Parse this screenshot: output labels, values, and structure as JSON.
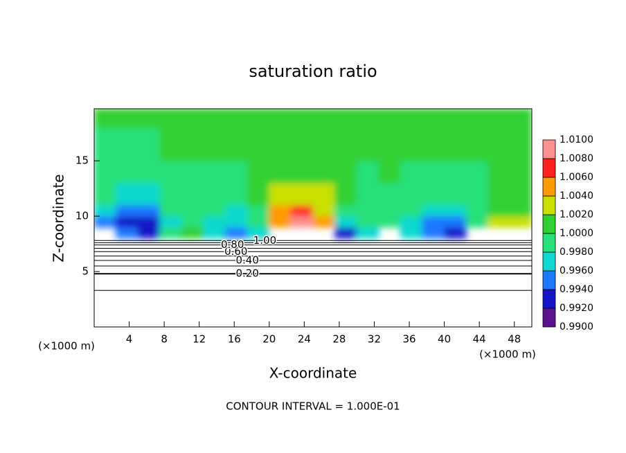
{
  "chart_data": {
    "type": "contour",
    "title": "saturation ratio",
    "x_label": "X-coordinate",
    "y_label": "Z-coordinate",
    "x_unit": "(×1000 m)",
    "y_unit": "(×1000 m)",
    "footer": "CONTOUR INTERVAL = 1.000E-01",
    "xlim": [
      0,
      50
    ],
    "ylim": [
      0,
      19.7
    ],
    "xticks": [
      4,
      8,
      12,
      16,
      20,
      24,
      28,
      32,
      36,
      40,
      44,
      48
    ],
    "yticks": [
      5,
      10,
      15
    ],
    "colorbar": {
      "ticks": [
        {
          "value": 0.99,
          "label": "0.9900"
        },
        {
          "value": 0.992,
          "label": "0.9920"
        },
        {
          "value": 0.994,
          "label": "0.9940"
        },
        {
          "value": 0.996,
          "label": "0.9960"
        },
        {
          "value": 0.998,
          "label": "0.9980"
        },
        {
          "value": 1.0,
          "label": "1.0000"
        },
        {
          "value": 1.002,
          "label": "1.0020"
        },
        {
          "value": 1.004,
          "label": "1.0040"
        },
        {
          "value": 1.006,
          "label": "1.0060"
        },
        {
          "value": 1.008,
          "label": "1.0080"
        },
        {
          "value": 1.01,
          "label": "1.0100"
        }
      ],
      "colors": [
        "#5a1490",
        "#1414c8",
        "#1e78ff",
        "#10d8d0",
        "#28e07a",
        "#30d030",
        "#c8e000",
        "#ff9a00",
        "#ff2020",
        "#ff9090"
      ]
    },
    "field": {
      "xbins": [
        0,
        2.5,
        5,
        7.5,
        10,
        12.5,
        15,
        17.5,
        20,
        22.5,
        25,
        27.5,
        30,
        32.5,
        35,
        37.5,
        40,
        42.5,
        45,
        47.5,
        50
      ],
      "zbins": [
        8,
        9,
        10,
        11,
        13,
        15,
        18,
        19.7
      ],
      "values": [
        [
          null,
          0.994,
          0.992,
          0.998,
          1.001,
          0.997,
          0.994,
          0.997,
          null,
          null,
          null,
          0.993,
          0.996,
          null,
          0.996,
          0.994,
          0.993,
          null,
          null,
          null
        ],
        [
          0.995,
          0.993,
          0.992,
          0.997,
          0.999,
          0.997,
          0.996,
          0.999,
          1.005,
          1.008,
          1.004,
          0.997,
          0.998,
          0.999,
          0.997,
          0.995,
          0.994,
          0.999,
          1.002,
          1.003
        ],
        [
          0.997,
          0.995,
          0.995,
          0.998,
          0.999,
          0.998,
          0.997,
          0.999,
          1.004,
          1.006,
          1.003,
          0.999,
          0.999,
          0.999,
          0.998,
          0.997,
          0.996,
          0.999,
          1.001,
          1.001
        ],
        [
          0.998,
          0.997,
          0.997,
          0.998,
          0.999,
          0.999,
          0.998,
          1.0,
          1.002,
          1.003,
          1.002,
          1.0,
          0.999,
          0.999,
          0.999,
          0.998,
          0.998,
          0.999,
          1.0,
          1.0
        ],
        [
          0.999,
          0.999,
          0.998,
          0.999,
          0.999,
          0.999,
          0.999,
          1.0,
          1.001,
          1.001,
          1.001,
          1.0,
          0.999,
          1.0,
          0.999,
          0.999,
          0.999,
          0.999,
          1.0,
          1.0
        ],
        [
          0.999,
          0.999,
          0.999,
          1.0,
          1.0,
          1.0,
          1.0,
          1.0,
          1.001,
          1.001,
          1.0,
          1.0,
          1.0,
          1.0,
          1.0,
          1.0,
          1.0,
          1.0,
          1.0,
          1.0
        ],
        [
          1.0,
          1.0,
          1.0,
          1.0,
          1.0,
          1.0,
          1.0,
          1.0,
          1.0,
          1.0,
          1.0,
          1.0,
          1.0,
          1.0,
          1.0,
          1.0,
          1.0,
          1.0,
          1.0,
          1.0
        ]
      ]
    },
    "contours": [
      {
        "level": 0.1,
        "z": 3.3
      },
      {
        "level": {
          "value": 0.2,
          "label": "0.20"
        },
        "z": 4.8,
        "label_x": 17.5
      },
      {
        "level": 0.3,
        "z": 5.5
      },
      {
        "level": {
          "value": 0.4,
          "label": "0.40"
        },
        "z": 6.0,
        "label_x": 17.5
      },
      {
        "level": 0.5,
        "z": 6.4
      },
      {
        "level": {
          "value": 0.6,
          "label": "0.60"
        },
        "z": 6.8,
        "label_x": 16.2
      },
      {
        "level": 0.7,
        "z": 7.1
      },
      {
        "level": {
          "value": 0.8,
          "label": "0.80"
        },
        "z": 7.4,
        "label_x": 15.8
      },
      {
        "level": 0.9,
        "z": 7.6
      },
      {
        "level": {
          "value": 1.0,
          "label": "1.00"
        },
        "z": 7.8,
        "label_x": 19.5
      }
    ]
  }
}
